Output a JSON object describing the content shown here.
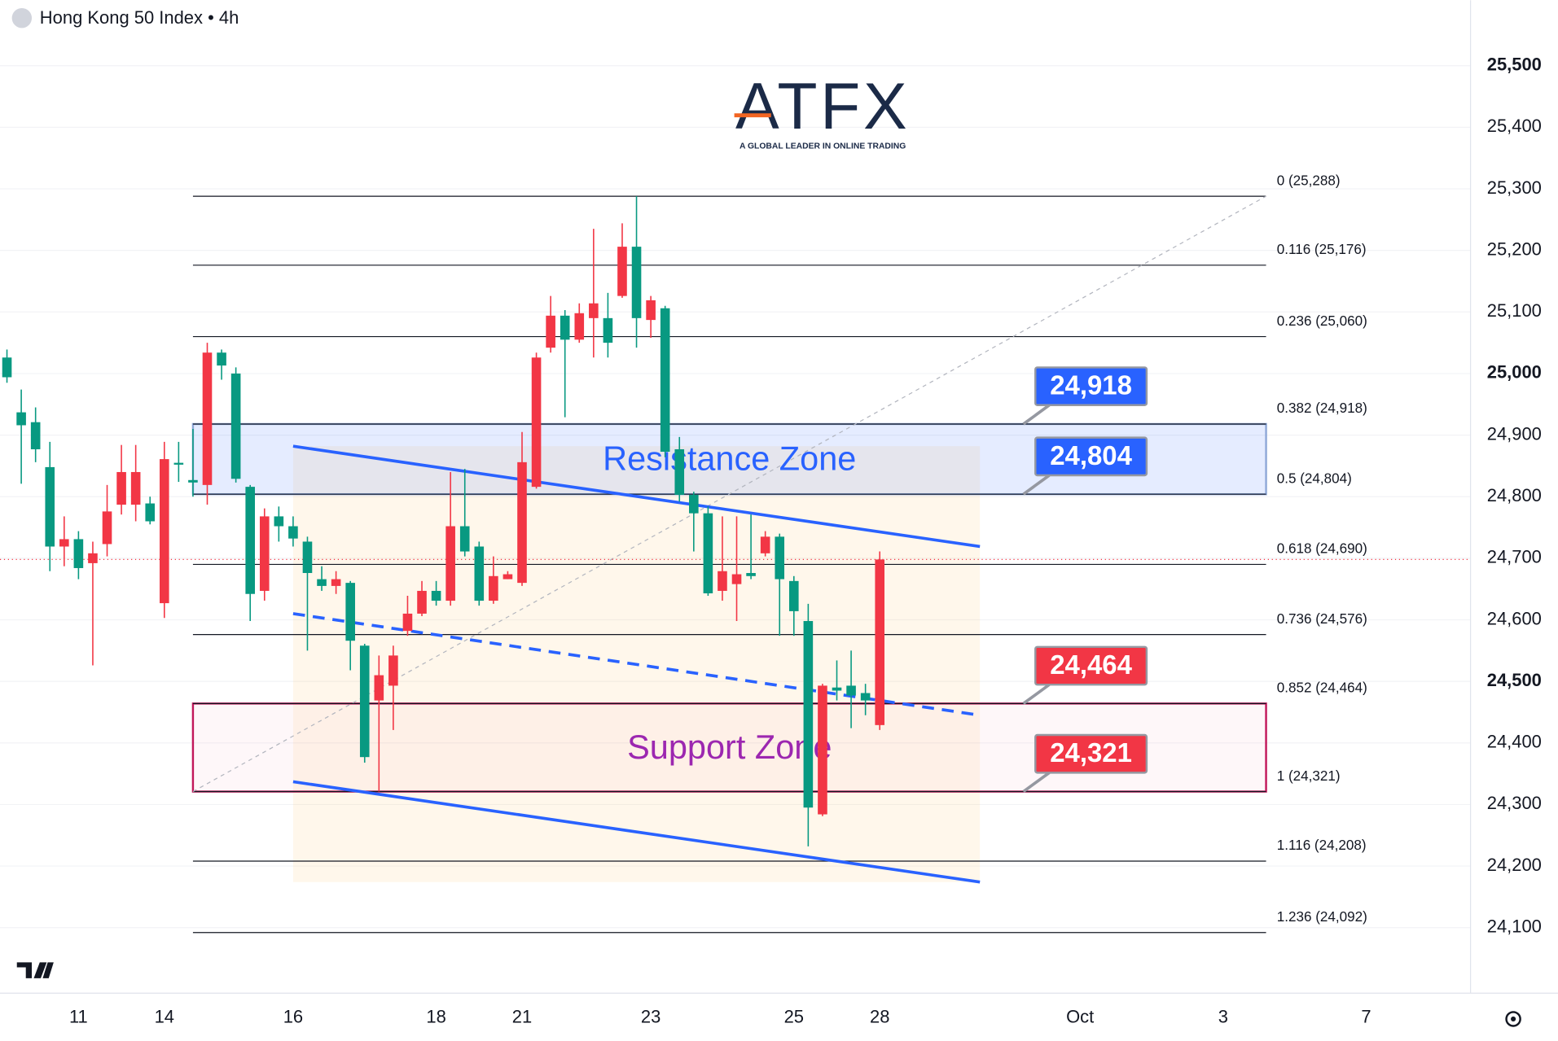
{
  "watermark": {
    "brand": "ATFX",
    "tagline": "A GLOBAL LEADER IN ONLINE TRADING"
  },
  "chart_data": {
    "type": "candlestick",
    "title": "Hong Kong 50 Index • 4h",
    "categories": [
      null,
      null,
      null,
      null,
      null,
      "11",
      null,
      null,
      null,
      null,
      null,
      "14",
      null,
      null,
      null,
      null,
      null,
      null,
      null,
      null,
      "16",
      null,
      null,
      null,
      null,
      null,
      null,
      null,
      null,
      null,
      "18",
      null,
      null,
      null,
      null,
      null,
      "21",
      null,
      null,
      null,
      null,
      null,
      null,
      null,
      null,
      "23",
      null,
      null,
      null,
      null,
      null,
      null,
      null,
      null,
      null,
      "25",
      null,
      null,
      null,
      null,
      null,
      "28",
      null,
      null,
      null,
      null,
      null,
      null,
      null,
      null,
      null,
      null,
      null,
      null,
      null,
      "Oct",
      null,
      null,
      null,
      null,
      null,
      null,
      null,
      null,
      null,
      "3",
      null,
      null,
      null,
      null,
      null,
      null,
      null,
      null,
      null,
      "7",
      null,
      null,
      null,
      null,
      null,
      null
    ],
    "open": [
      25026,
      24937,
      24921,
      24848,
      24719,
      24731,
      24692,
      24723,
      24787,
      24787,
      24789,
      24627,
      24855,
      24827,
      24819,
      25034,
      25000,
      24816,
      24647,
      24768,
      24752,
      24727,
      24666,
      24655,
      24660,
      24558,
      24469,
      24493,
      24582,
      24610,
      24647,
      24631,
      24752,
      24719,
      24631,
      24666,
      24660,
      24816,
      25042,
      25094,
      25055,
      25090,
      25090,
      25126,
      25206,
      25087,
      25106,
      24877,
      24803,
      24773,
      24647,
      24658,
      24676,
      24708,
      24735,
      24663,
      24598,
      24284,
      24490,
      24493,
      24481,
      24429,
      null,
      null,
      null,
      null,
      null,
      null,
      null,
      null,
      null,
      null,
      null,
      null,
      null,
      null,
      null,
      null,
      null,
      null,
      null,
      null,
      null,
      null,
      null,
      null,
      null,
      null,
      null,
      null,
      null,
      null,
      null,
      null,
      null,
      null,
      null,
      null,
      null,
      null,
      null,
      null
    ],
    "high": [
      25039,
      24974,
      24945,
      24889,
      24768,
      24744,
      24727,
      24819,
      24884,
      24884,
      24800,
      24889,
      24889,
      24910,
      25050,
      25039,
      25010,
      24819,
      24781,
      24784,
      24768,
      24735,
      24687,
      24679,
      24663,
      24561,
      24542,
      24558,
      24639,
      24663,
      24663,
      24840,
      24845,
      24727,
      24703,
      24679,
      24905,
      25034,
      25126,
      25103,
      25114,
      25235,
      25131,
      25244,
      25288,
      25126,
      25110,
      24897,
      24808,
      24784,
      24768,
      24768,
      24771,
      24744,
      24740,
      24671,
      24626,
      24496,
      24534,
      24550,
      24496,
      24711,
      null,
      null,
      null,
      null,
      null,
      null,
      null,
      null,
      null,
      null,
      null,
      null,
      null,
      null,
      null,
      null,
      null,
      null,
      null,
      null,
      null,
      null,
      null,
      null,
      null,
      null,
      null,
      null,
      null,
      null,
      null,
      null,
      null,
      null,
      null,
      null,
      null,
      null,
      null,
      null
    ],
    "low": [
      24985,
      24821,
      24856,
      24679,
      24687,
      24666,
      24526,
      24703,
      24771,
      24760,
      24755,
      24603,
      24824,
      24800,
      24787,
      24990,
      24823,
      24598,
      24631,
      24727,
      24719,
      24550,
      24647,
      24642,
      24518,
      24368,
      24321,
      24421,
      24574,
      24606,
      24623,
      24623,
      24703,
      24623,
      24626,
      24666,
      24655,
      24813,
      25034,
      24929,
      25050,
      25026,
      25026,
      25123,
      25042,
      25058,
      24864,
      24792,
      24711,
      24639,
      24631,
      24598,
      24666,
      24703,
      24574,
      24574,
      24232,
      24281,
      24469,
      24424,
      24445,
      24421,
      null,
      null,
      null,
      null,
      null,
      null,
      null,
      null,
      null,
      null,
      null,
      null,
      null,
      null,
      null,
      null,
      null,
      null,
      null,
      null,
      null,
      null,
      null,
      null,
      null,
      null,
      null,
      null,
      null,
      null,
      null,
      null,
      null,
      null,
      null,
      null,
      null,
      null,
      null,
      null
    ],
    "close": [
      24994,
      24916,
      24877,
      24719,
      24731,
      24684,
      24708,
      24776,
      24840,
      24840,
      24760,
      24861,
      24852,
      24823,
      25034,
      25013,
      24829,
      24642,
      24768,
      24752,
      24732,
      24676,
      24655,
      24666,
      24566,
      24377,
      24510,
      24542,
      24610,
      24647,
      24631,
      24752,
      24711,
      24631,
      24671,
      24674,
      24856,
      25026,
      25094,
      25055,
      25098,
      25114,
      25050,
      25206,
      25090,
      25119,
      24873,
      24803,
      24773,
      24643,
      24679,
      24674,
      24671,
      24735,
      24666,
      24614,
      24295,
      24493,
      24485,
      24477,
      24469,
      24698,
      null,
      null,
      null,
      null,
      null,
      null,
      null,
      null,
      null,
      null,
      null,
      null,
      null,
      null,
      null,
      null,
      null,
      null,
      null,
      null,
      null,
      null,
      null,
      null,
      null,
      null,
      null,
      null,
      null,
      null,
      null,
      null,
      null,
      null,
      null,
      null,
      null,
      null,
      null,
      null
    ],
    "up_color": "#f23645",
    "down_color": "#089981",
    "ylim": [
      24000,
      25600
    ],
    "yticks": [
      {
        "value": 24100,
        "label": "24,100"
      },
      {
        "value": 24200,
        "label": "24,200"
      },
      {
        "value": 24300,
        "label": "24,300"
      },
      {
        "value": 24400,
        "label": "24,400"
      },
      {
        "value": 24500,
        "label": "24,500"
      },
      {
        "value": 24600,
        "label": "24,600"
      },
      {
        "value": 24700,
        "label": "24,700"
      },
      {
        "value": 24800,
        "label": "24,800"
      },
      {
        "value": 24900,
        "label": "24,900"
      },
      {
        "value": 25000,
        "label": "25,000"
      },
      {
        "value": 25100,
        "label": "25,100"
      },
      {
        "value": 25200,
        "label": "25,200"
      },
      {
        "value": 25300,
        "label": "25,300"
      },
      {
        "value": 25400,
        "label": "25,400"
      },
      {
        "value": 25500,
        "label": "25,500"
      }
    ],
    "grid": true,
    "box": {
      "x": [
        20,
        68
      ],
      "y": [
        24174,
        24882
      ],
      "color": "#ff9800"
    },
    "zones": [
      {
        "label": "Resistance Zone",
        "x": [
          13,
          88
        ],
        "from": 24804,
        "to": 24918,
        "color": "#2962ff",
        "border": "#8fa8d8",
        "text_color": "#2962ff"
      },
      {
        "label": "Support Zone",
        "x": [
          13,
          88
        ],
        "from": 24321,
        "to": 24464,
        "color": "#f8bbd0",
        "border": "#c2185b",
        "text_color": "#9c27b0"
      }
    ],
    "fibonacci": {
      "x": [
        13,
        88
      ],
      "anchor": [
        24321,
        25288
      ],
      "levels": [
        {
          "value": 25288,
          "label": "0 (25,288)"
        },
        {
          "value": 25176,
          "label": "0.116 (25,176)"
        },
        {
          "value": 25060,
          "label": "0.236 (25,060)"
        },
        {
          "value": 24918,
          "label": "0.382 (24,918)"
        },
        {
          "value": 24804,
          "label": "0.5 (24,804)"
        },
        {
          "value": 24690,
          "label": "0.618 (24,690)"
        },
        {
          "value": 24576,
          "label": "0.736 (24,576)"
        },
        {
          "value": 24464,
          "label": "0.852 (24,464)"
        },
        {
          "value": 24321,
          "label": "1 (24,321)"
        },
        {
          "value": 24208,
          "label": "1.116 (24,208)"
        },
        {
          "value": 24092,
          "label": "1.236 (24,092)"
        }
      ]
    },
    "channel": [
      {
        "x": [
          20,
          68
        ],
        "y": [
          24882,
          24719
        ],
        "dashed": false
      },
      {
        "x": [
          20,
          68
        ],
        "y": [
          24610,
          24445
        ],
        "dashed": true
      },
      {
        "x": [
          20,
          68
        ],
        "y": [
          24337,
          24174
        ],
        "dashed": false
      }
    ],
    "channel_color": "#2962ff",
    "callouts": [
      {
        "value": 24918,
        "label": "24,918",
        "color": "#2962ff"
      },
      {
        "value": 24804,
        "label": "24,804",
        "color": "#2962ff"
      },
      {
        "value": 24464,
        "label": "24,464",
        "color": "#f23645"
      },
      {
        "value": 24321,
        "label": "24,321",
        "color": "#f23645"
      }
    ]
  }
}
